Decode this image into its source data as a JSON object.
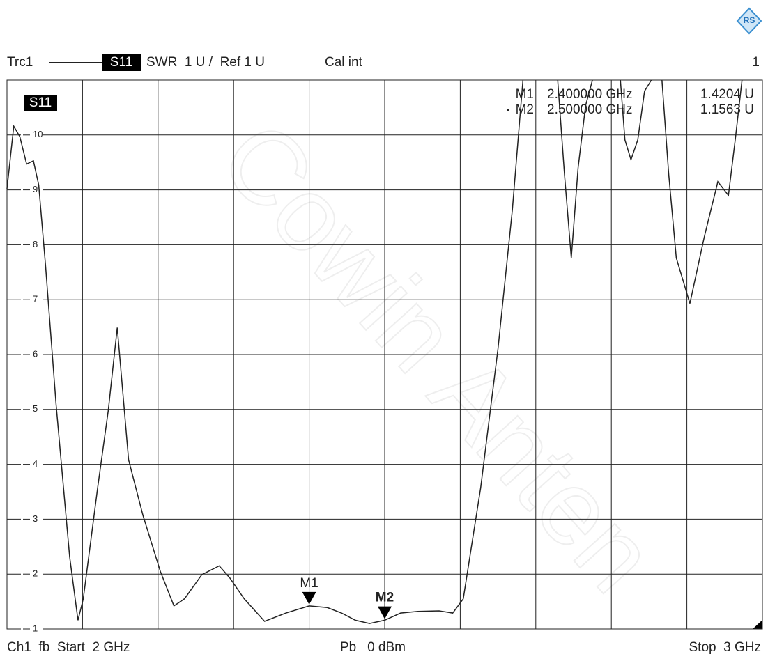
{
  "chart_data": {
    "type": "line",
    "header": {
      "trace": "Trc1",
      "param": "S11",
      "format": "SWR  1 U /  Ref 1 U",
      "cal": "Cal int",
      "channel": "1"
    },
    "footer": {
      "left": "Ch1  fb  Start  2 GHz",
      "center": "Pb   0 dBm",
      "right": "Stop  3 GHz"
    },
    "trace_label": "S11",
    "watermark": "Cowin Anten",
    "xlim": [
      2,
      3
    ],
    "xticks": [
      2,
      2.1,
      2.2,
      2.3,
      2.4,
      2.5,
      2.6,
      2.7,
      2.8,
      2.9,
      3
    ],
    "ylim": [
      1,
      11
    ],
    "yticks": [
      1,
      2,
      3,
      4,
      5,
      6,
      7,
      8,
      9,
      10
    ],
    "grid": true,
    "series": [
      {
        "name": "S11",
        "color": "#222222",
        "x": [
          2.0,
          2.009,
          2.017,
          2.026,
          2.035,
          2.042,
          2.051,
          2.065,
          2.083,
          2.094,
          2.101,
          2.12,
          2.134,
          2.146,
          2.161,
          2.18,
          2.203,
          2.221,
          2.235,
          2.258,
          2.281,
          2.295,
          2.314,
          2.341,
          2.369,
          2.4,
          2.424,
          2.443,
          2.461,
          2.48,
          2.5,
          2.521,
          2.544,
          2.572,
          2.59,
          2.604,
          2.627,
          2.65,
          2.669,
          2.678,
          2.683,
          2.7,
          2.729,
          2.738,
          2.747,
          2.756,
          2.766,
          2.775,
          2.79,
          2.812,
          2.818,
          2.826,
          2.835,
          2.844,
          2.853,
          2.86,
          2.867,
          2.876,
          2.886,
          2.904,
          2.923,
          2.941,
          2.955,
          2.964,
          2.973
        ],
        "values": [
          9.02,
          10.16,
          9.97,
          9.47,
          9.53,
          9.09,
          7.63,
          5.09,
          2.31,
          1.16,
          1.55,
          3.57,
          4.97,
          6.49,
          4.08,
          3.07,
          2.05,
          1.42,
          1.55,
          1.99,
          2.15,
          1.93,
          1.55,
          1.14,
          1.29,
          1.42,
          1.39,
          1.29,
          1.16,
          1.1,
          1.16,
          1.29,
          1.32,
          1.33,
          1.29,
          1.55,
          3.57,
          6.11,
          8.64,
          10.16,
          11,
          null,
          11,
          9.28,
          7.76,
          9.4,
          10.54,
          11,
          null,
          11,
          9.91,
          9.55,
          9.91,
          10.8,
          11,
          null,
          11,
          9.28,
          7.76,
          6.93,
          8.14,
          9.15,
          8.9,
          9.91,
          11
        ]
      }
    ],
    "markers": [
      {
        "name": "M1",
        "x": 2.4,
        "y": 1.4204,
        "freq_label": "2.400000 GHz",
        "value_label": "1.4204 U"
      },
      {
        "name": "M2",
        "x": 2.5,
        "y": 1.1563,
        "freq_label": "2.500000 GHz",
        "value_label": "1.1563 U"
      }
    ]
  }
}
